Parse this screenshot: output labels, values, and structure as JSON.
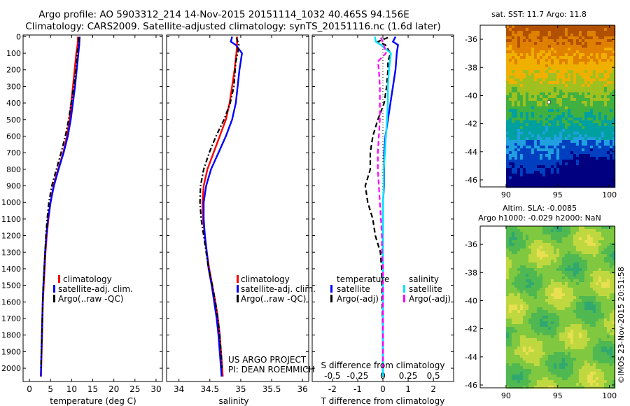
{
  "header": {
    "line1": "Argo profile: AO 5903312_214 14-Nov-2015 20151114_1032 40.465S 94.156E",
    "line2": "Climatology: CARS2009. Satellite-adjusted climatology: synTS_20151116.nc (1.6d later)"
  },
  "timestamp": "©IMOS 23-Nov-2015 20:51:58",
  "credit": {
    "line1": "US ARGO PROJECT",
    "line2": "PI: DEAN ROEMMICH"
  },
  "colors": {
    "climatology": "#ff0000",
    "satellite": "#0000ff",
    "argo": "#000000",
    "sat_salinity_diff": "#00e5ff",
    "argo_salinity_diff": "#ff00ff"
  },
  "chart_data": [
    {
      "type": "line",
      "id": "temperature",
      "xlabel": "temperature (deg C)",
      "xlim": [
        -1.5,
        31.5
      ],
      "ylim": [
        2080,
        -10
      ],
      "xticks": [
        0,
        5,
        10,
        15,
        20,
        25,
        30
      ],
      "yticks": [
        0,
        100,
        200,
        300,
        400,
        500,
        600,
        700,
        800,
        900,
        1000,
        1100,
        1200,
        1300,
        1400,
        1500,
        1600,
        1700,
        1800,
        1900,
        2000
      ],
      "legend": [
        "climatology",
        "satellite-adj. clim.",
        "Argo(..raw -QC)"
      ],
      "series": [
        {
          "name": "climatology",
          "color": "#ff0000",
          "style": "solid",
          "depth": [
            0,
            50,
            100,
            200,
            300,
            400,
            500,
            600,
            700,
            800,
            900,
            1000,
            1100,
            1200,
            1300,
            1400,
            1500,
            1600,
            1700,
            1800,
            1900,
            2000,
            2050
          ],
          "values": [
            11.5,
            11.4,
            11.1,
            10.7,
            10.3,
            9.9,
            9.5,
            8.9,
            8.0,
            6.8,
            5.7,
            5.0,
            4.5,
            4.1,
            3.8,
            3.6,
            3.4,
            3.2,
            3.1,
            3.0,
            2.9,
            2.8,
            2.75
          ]
        },
        {
          "name": "satellite-adj. clim.",
          "color": "#0000ff",
          "style": "solid",
          "depth": [
            0,
            50,
            100,
            200,
            300,
            400,
            500,
            600,
            700,
            800,
            900,
            1000,
            1100,
            1200,
            1300,
            1400,
            1500,
            1600,
            1700,
            1800,
            1900,
            2000,
            2050
          ],
          "values": [
            11.9,
            11.8,
            11.6,
            11.2,
            10.8,
            10.3,
            9.8,
            9.1,
            8.1,
            6.9,
            5.8,
            5.0,
            4.4,
            4.0,
            3.7,
            3.5,
            3.3,
            3.15,
            3.05,
            2.95,
            2.85,
            2.75,
            2.7
          ]
        },
        {
          "name": "Argo(..raw -QC)",
          "color": "#000000",
          "style": "dashdot",
          "depth": [
            5,
            50,
            100,
            200,
            300,
            400,
            500,
            600,
            700,
            800,
            900,
            1000,
            1100,
            1200,
            1300,
            1400,
            1500,
            1600,
            1700,
            1800,
            1900,
            2000
          ],
          "values": [
            11.7,
            11.6,
            11.3,
            11.0,
            10.5,
            9.9,
            9.3,
            8.5,
            7.5,
            6.4,
            5.3,
            4.6,
            4.2,
            3.9,
            3.7,
            3.5,
            3.3,
            3.15,
            3.05,
            2.95,
            2.85,
            2.75
          ]
        }
      ]
    },
    {
      "type": "line",
      "id": "salinity",
      "xlabel": "salinity",
      "xlim": [
        33.8,
        36.1
      ],
      "ylim": [
        2080,
        -10
      ],
      "xticks": [
        34,
        34.5,
        35,
        35.5,
        36
      ],
      "xticklabels": [
        "34",
        "34.5",
        "35",
        "35.5",
        "36"
      ],
      "legend": [
        "climatology",
        "satellite-adj. clim.",
        "Argo(..raw -QC)"
      ],
      "series": [
        {
          "name": "climatology",
          "color": "#ff0000",
          "style": "solid",
          "depth": [
            0,
            50,
            100,
            200,
            300,
            400,
            500,
            600,
            700,
            800,
            900,
            1000,
            1100,
            1200,
            1300,
            1400,
            1500,
            1600,
            1700,
            1800,
            1900,
            2000,
            2050
          ],
          "values": [
            34.94,
            34.94,
            34.93,
            34.9,
            34.86,
            34.82,
            34.76,
            34.66,
            34.56,
            34.46,
            34.4,
            34.38,
            34.39,
            34.42,
            34.45,
            34.49,
            34.54,
            34.59,
            34.63,
            34.66,
            34.68,
            34.7,
            34.71
          ]
        },
        {
          "name": "satellite-adj. clim.",
          "color": "#0000ff",
          "style": "solid",
          "depth": [
            0,
            30,
            50,
            100,
            150,
            200,
            300,
            400,
            500,
            600,
            700,
            800,
            900,
            1000,
            1100,
            1200,
            1300,
            1400,
            1500,
            1600,
            1700,
            1800,
            1900,
            2000,
            2050
          ],
          "values": [
            34.86,
            34.84,
            34.92,
            35.02,
            35.0,
            34.98,
            34.95,
            34.92,
            34.86,
            34.76,
            34.64,
            34.52,
            34.44,
            34.4,
            34.4,
            34.42,
            34.45,
            34.48,
            34.53,
            34.57,
            34.61,
            34.64,
            34.66,
            34.68,
            34.69
          ]
        },
        {
          "name": "Argo(..raw -QC)",
          "color": "#000000",
          "style": "dashdot",
          "depth": [
            5,
            50,
            100,
            150,
            200,
            300,
            400,
            500,
            600,
            700,
            800,
            900,
            1000,
            1100,
            1200,
            1300,
            1400,
            1500,
            1600,
            1700,
            1800,
            1900,
            2000
          ],
          "values": [
            34.93,
            34.97,
            34.95,
            34.92,
            34.91,
            34.89,
            34.83,
            34.73,
            34.6,
            34.49,
            34.4,
            34.35,
            34.34,
            34.36,
            34.4,
            34.44,
            34.48,
            34.54,
            34.59,
            34.63,
            34.66,
            34.68,
            34.7
          ]
        }
      ]
    },
    {
      "type": "line",
      "id": "difference",
      "xlabel": "T difference from climatology",
      "top_xlabel": "S difference from climatology",
      "xlim": [
        -2.8,
        2.8
      ],
      "ylim": [
        2080,
        -10
      ],
      "xticks": [
        -2,
        -1,
        0,
        1,
        2
      ],
      "top_xticks": [
        -0.5,
        -0.25,
        0,
        0.25,
        0.5
      ],
      "top_xticklabels": [
        "-0.5",
        "-0.25",
        "0",
        "0.25",
        "0.5"
      ],
      "legend_groups": [
        "temperature",
        "salinity"
      ],
      "legend": [
        "satellite",
        "Argo(-adj)",
        "satellite",
        "Argo(-adj)"
      ],
      "series": [
        {
          "name": "temperature satellite",
          "color": "#0000ff",
          "style": "solid",
          "depth": [
            0,
            30,
            50,
            100,
            200,
            300,
            400,
            500,
            600,
            700,
            800,
            900,
            1000,
            1200,
            1400,
            1600,
            1800,
            2000,
            2050
          ],
          "values": [
            0.5,
            0.4,
            0.6,
            0.55,
            0.5,
            0.4,
            0.3,
            0.2,
            0.1,
            0.05,
            0.05,
            0.05,
            0.0,
            0.0,
            0.0,
            0.0,
            0.0,
            0.0,
            0.0
          ]
        },
        {
          "name": "temperature Argo(-adj)",
          "color": "#000000",
          "style": "dashed",
          "depth": [
            5,
            30,
            50,
            100,
            150,
            200,
            300,
            400,
            500,
            600,
            700,
            800,
            900,
            1000,
            1100,
            1200,
            1300,
            1400,
            1600,
            1800,
            2000
          ],
          "values": [
            0.2,
            -0.2,
            0.1,
            0.3,
            0.2,
            0.2,
            0.15,
            0.05,
            -0.2,
            -0.4,
            -0.5,
            -0.5,
            -0.7,
            -0.6,
            -0.4,
            -0.3,
            -0.1,
            -0.05,
            -0.03,
            0.0,
            0.0
          ]
        },
        {
          "name": "salinity satellite",
          "color": "#00e5ff",
          "style": "solid",
          "depth": [
            0,
            30,
            50,
            100,
            200,
            300,
            400,
            500,
            600,
            700,
            800,
            900,
            1000,
            1200,
            1400,
            1600,
            1800,
            2000,
            2050
          ],
          "values": [
            -0.08,
            -0.07,
            -0.02,
            0.08,
            0.06,
            0.05,
            0.05,
            0.04,
            0.03,
            0.02,
            0.01,
            0.01,
            0.0,
            0.0,
            0.0,
            0.0,
            0.0,
            0.0,
            0.0
          ]
        },
        {
          "name": "salinity Argo(-adj)",
          "color": "#ff00ff",
          "style": "dashed",
          "depth": [
            5,
            50,
            100,
            150,
            200,
            300,
            400,
            500,
            600,
            700,
            800,
            900,
            1000,
            1100,
            1200,
            1300,
            1400,
            1600,
            1800,
            2000
          ],
          "values": [
            -0.02,
            0.01,
            0.03,
            -0.05,
            -0.04,
            -0.03,
            -0.03,
            -0.03,
            -0.04,
            -0.05,
            -0.05,
            -0.04,
            -0.03,
            -0.02,
            -0.01,
            -0.01,
            0.0,
            0.0,
            0.0,
            0.0
          ]
        }
      ]
    },
    {
      "type": "heatmap",
      "id": "sst_map",
      "title": "sat. SST: 11.7 Argo: 11.8",
      "xlim": [
        87.5,
        100.5
      ],
      "ylim": [
        -46.5,
        -35
      ],
      "xticks": [
        90,
        95,
        100
      ],
      "yticks": [
        -36,
        -38,
        -40,
        -42,
        -44,
        -46
      ],
      "colors": [
        "#b05000",
        "#e08000",
        "#f0b000",
        "#a0c020",
        "#40b040",
        "#00a0a0",
        "#20a0e0",
        "#0040c0",
        "#000080"
      ],
      "marker": {
        "lon": 94.156,
        "lat": -40.465
      }
    },
    {
      "type": "heatmap",
      "id": "sla_map",
      "title": "Altim. SLA: -0.0085",
      "subtitle": "Argo h1000: -0.029 h2000: NaN",
      "xlim": [
        87.5,
        100.5
      ],
      "ylim": [
        -46.2,
        -34.7
      ],
      "xticks": [
        90,
        95,
        100
      ],
      "yticks": [
        -36,
        -38,
        -40,
        -42,
        -44,
        -46
      ],
      "colors": [
        "#30a870",
        "#50b850",
        "#80c840",
        "#c0d840",
        "#e8e050"
      ]
    }
  ]
}
